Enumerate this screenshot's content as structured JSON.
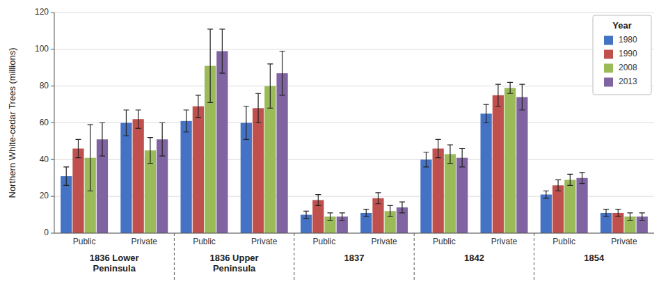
{
  "chart_data": {
    "type": "bar",
    "ylabel": "Northern White-cedar Trees  (millions)",
    "categories": [
      "Public",
      "Private",
      "Public",
      "Private",
      "Public",
      "Private",
      "Public",
      "Private",
      "Public",
      "Private"
    ],
    "sections": [
      "1836 Lower\nPeninsula",
      "1836 Upper\nPeninsula",
      "1837",
      "1842",
      "1854"
    ],
    "series": [
      {
        "name": "1980",
        "color": "#4472C4",
        "values": [
          31,
          60,
          61,
          60,
          10,
          11,
          40,
          65,
          21,
          11
        ],
        "errors": [
          5,
          7,
          6,
          9,
          2,
          2,
          4,
          5,
          2,
          2
        ]
      },
      {
        "name": "1990",
        "color": "#C0504D",
        "values": [
          46,
          62,
          69,
          68,
          18,
          19,
          46,
          75,
          26,
          11
        ],
        "errors": [
          5,
          5,
          6,
          8,
          3,
          3,
          5,
          6,
          3,
          2
        ]
      },
      {
        "name": "2008",
        "color": "#9BBB59",
        "values": [
          41,
          45,
          91,
          80,
          9,
          12,
          43,
          79,
          29,
          9
        ],
        "errors": [
          18,
          7,
          20,
          12,
          2,
          3,
          5,
          3,
          3,
          2
        ]
      },
      {
        "name": "2013",
        "color": "#8064A2",
        "values": [
          51,
          51,
          99,
          87,
          9,
          14,
          41,
          74,
          30,
          9
        ],
        "errors": [
          9,
          9,
          12,
          12,
          2,
          3,
          5,
          7,
          3,
          2
        ]
      }
    ],
    "legend_title": "Year",
    "legend": "upper right",
    "ylim": [
      0,
      120
    ],
    "yticks": [
      0,
      20,
      40,
      60,
      80,
      100,
      120
    ],
    "grid": true
  }
}
